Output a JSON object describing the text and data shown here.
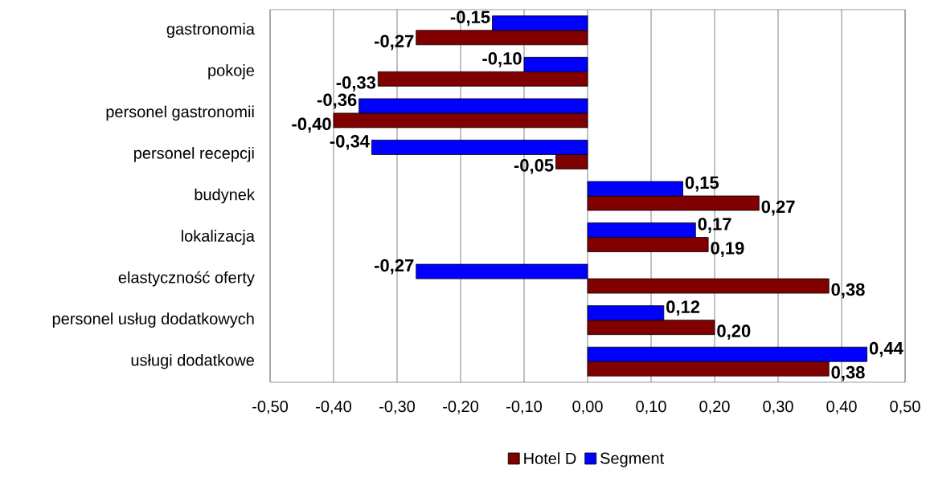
{
  "chart_data": {
    "type": "bar",
    "orientation": "horizontal",
    "categories": [
      "gastronomia",
      "pokoje",
      "personel gastronomii",
      "personel recepcji",
      "budynek",
      "lokalizacja",
      "elastyczność oferty",
      "personel usług dodatkowych",
      "usługi dodatkowe"
    ],
    "series": [
      {
        "name": "Hotel D",
        "color": "#800000",
        "values": [
          -0.27,
          -0.33,
          -0.4,
          -0.05,
          0.27,
          0.19,
          0.38,
          0.2,
          0.38
        ],
        "value_labels": [
          "-0,27",
          "-0,33",
          "-0,40",
          "-0,05",
          "0,27",
          "0,19",
          "0,38",
          "0,20",
          "0,38"
        ]
      },
      {
        "name": "Segment",
        "color": "#0000ff",
        "values": [
          -0.15,
          -0.1,
          -0.36,
          -0.34,
          0.15,
          0.17,
          -0.27,
          0.12,
          0.44
        ],
        "value_labels": [
          "-0,15",
          "-0,10",
          "-0,36",
          "-0,34",
          "0,15",
          "0,17",
          "-0,27",
          "0,12",
          "0,44"
        ]
      }
    ],
    "xlim": [
      -0.5,
      0.5
    ],
    "xticks": [
      {
        "value": -0.5,
        "label": "-0,50"
      },
      {
        "value": -0.4,
        "label": "-0,40"
      },
      {
        "value": -0.3,
        "label": "-0,30"
      },
      {
        "value": -0.2,
        "label": "-0,20"
      },
      {
        "value": -0.1,
        "label": "-0,10"
      },
      {
        "value": 0,
        "label": "0,00"
      },
      {
        "value": 0.1,
        "label": "0,10"
      },
      {
        "value": 0.2,
        "label": "0,20"
      },
      {
        "value": 0.3,
        "label": "0,30"
      },
      {
        "value": 0.4,
        "label": "0,40"
      },
      {
        "value": 0.5,
        "label": "0,50"
      }
    ],
    "grid": "x",
    "legend": "bottom"
  }
}
